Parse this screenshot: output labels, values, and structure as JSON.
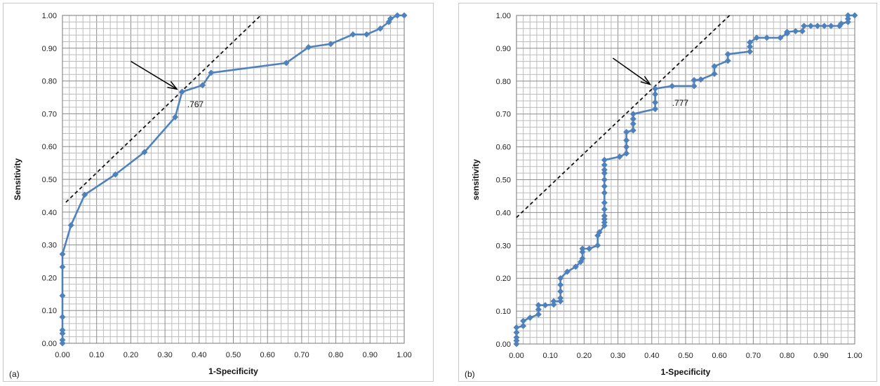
{
  "chart_data": [
    {
      "type": "line",
      "panel_label": "(a)",
      "xlabel": "1-Specificity",
      "ylabel": "Sensitivity",
      "xlim": [
        0,
        1
      ],
      "ylim": [
        0,
        1
      ],
      "grid": true,
      "x_ticks": [
        "0.00",
        "0.10",
        "0.20",
        "0.30",
        "0.40",
        "0.50",
        "0.60",
        "0.70",
        "0.80",
        "0.90",
        "1.00"
      ],
      "y_ticks": [
        "0.00",
        "0.10",
        "0.20",
        "0.30",
        "0.40",
        "0.50",
        "0.60",
        "0.70",
        "0.80",
        "0.90",
        "1.00"
      ],
      "series_color": "#4f81bd",
      "series": [
        {
          "points": [
            [
              0,
              0
            ],
            [
              0,
              0.01
            ],
            [
              0,
              0.03
            ],
            [
              0,
              0.04
            ],
            [
              0,
              0.08
            ],
            [
              0,
              0.145
            ],
            [
              0,
              0.233
            ],
            [
              0,
              0.272
            ],
            [
              0.025,
              0.36
            ],
            [
              0.065,
              0.453
            ],
            [
              0.155,
              0.515
            ],
            [
              0.24,
              0.583
            ],
            [
              0.33,
              0.69
            ],
            [
              0.35,
              0.767
            ],
            [
              0.41,
              0.787
            ],
            [
              0.435,
              0.825
            ],
            [
              0.655,
              0.855
            ],
            [
              0.72,
              0.903
            ],
            [
              0.785,
              0.913
            ],
            [
              0.85,
              0.942
            ],
            [
              0.89,
              0.942
            ],
            [
              0.93,
              0.96
            ],
            [
              0.955,
              0.98
            ],
            [
              0.96,
              0.99
            ],
            [
              0.98,
              1.0
            ],
            [
              1.0,
              1.0
            ]
          ]
        }
      ],
      "tangent_line": [
        [
          0.01,
          0.43
        ],
        [
          0.58,
          1.0
        ]
      ],
      "annotation": {
        "text": ".767",
        "x": 0.365,
        "y": 0.72
      },
      "arrow": {
        "from": [
          0.2,
          0.86
        ],
        "to": [
          0.335,
          0.775
        ]
      }
    },
    {
      "type": "line",
      "panel_label": "(b)",
      "xlabel": "1-Specificity",
      "ylabel": "sensitivity",
      "xlim": [
        0,
        1
      ],
      "ylim": [
        0,
        1
      ],
      "grid": true,
      "x_ticks": [
        "0.00",
        "0.10",
        "0.20",
        "0.30",
        "0.40",
        "0.50",
        "0.60",
        "0.70",
        "0.80",
        "0.90",
        "1.00"
      ],
      "y_ticks": [
        "0.00",
        "0.10",
        "0.20",
        "0.30",
        "0.40",
        "0.50",
        "0.60",
        "0.70",
        "0.80",
        "0.90",
        "1.00"
      ],
      "series_color": "#4f81bd",
      "series": [
        {
          "points": [
            [
              0,
              0
            ],
            [
              0,
              0.01
            ],
            [
              0,
              0.02
            ],
            [
              0,
              0.035
            ],
            [
              0,
              0.05
            ],
            [
              0.02,
              0.055
            ],
            [
              0.02,
              0.07
            ],
            [
              0.04,
              0.08
            ],
            [
              0.065,
              0.09
            ],
            [
              0.065,
              0.105
            ],
            [
              0.065,
              0.118
            ],
            [
              0.085,
              0.118
            ],
            [
              0.11,
              0.12
            ],
            [
              0.11,
              0.13
            ],
            [
              0.13,
              0.13
            ],
            [
              0.13,
              0.14
            ],
            [
              0.13,
              0.16
            ],
            [
              0.13,
              0.18
            ],
            [
              0.13,
              0.2
            ],
            [
              0.15,
              0.22
            ],
            [
              0.175,
              0.235
            ],
            [
              0.19,
              0.25
            ],
            [
              0.195,
              0.26
            ],
            [
              0.195,
              0.28
            ],
            [
              0.195,
              0.29
            ],
            [
              0.215,
              0.29
            ],
            [
              0.24,
              0.3
            ],
            [
              0.24,
              0.33
            ],
            [
              0.245,
              0.34
            ],
            [
              0.26,
              0.36
            ],
            [
              0.26,
              0.37
            ],
            [
              0.26,
              0.38
            ],
            [
              0.26,
              0.39
            ],
            [
              0.26,
              0.41
            ],
            [
              0.26,
              0.43
            ],
            [
              0.26,
              0.46
            ],
            [
              0.26,
              0.48
            ],
            [
              0.26,
              0.5
            ],
            [
              0.26,
              0.52
            ],
            [
              0.26,
              0.53
            ],
            [
              0.26,
              0.545
            ],
            [
              0.26,
              0.56
            ],
            [
              0.305,
              0.57
            ],
            [
              0.325,
              0.58
            ],
            [
              0.325,
              0.6
            ],
            [
              0.325,
              0.62
            ],
            [
              0.325,
              0.645
            ],
            [
              0.345,
              0.65
            ],
            [
              0.345,
              0.67
            ],
            [
              0.345,
              0.685
            ],
            [
              0.345,
              0.7
            ],
            [
              0.41,
              0.715
            ],
            [
              0.41,
              0.735
            ],
            [
              0.41,
              0.76
            ],
            [
              0.41,
              0.777
            ],
            [
              0.46,
              0.785
            ],
            [
              0.525,
              0.785
            ],
            [
              0.525,
              0.803
            ],
            [
              0.545,
              0.805
            ],
            [
              0.585,
              0.822
            ],
            [
              0.585,
              0.845
            ],
            [
              0.625,
              0.862
            ],
            [
              0.625,
              0.882
            ],
            [
              0.69,
              0.89
            ],
            [
              0.69,
              0.905
            ],
            [
              0.69,
              0.918
            ],
            [
              0.71,
              0.932
            ],
            [
              0.74,
              0.932
            ],
            [
              0.78,
              0.932
            ],
            [
              0.8,
              0.945
            ],
            [
              0.8,
              0.95
            ],
            [
              0.825,
              0.952
            ],
            [
              0.845,
              0.952
            ],
            [
              0.85,
              0.968
            ],
            [
              0.87,
              0.968
            ],
            [
              0.89,
              0.968
            ],
            [
              0.91,
              0.968
            ],
            [
              0.93,
              0.968
            ],
            [
              0.955,
              0.968
            ],
            [
              0.96,
              0.975
            ],
            [
              0.98,
              0.98
            ],
            [
              0.98,
              0.99
            ],
            [
              0.98,
              1.0
            ],
            [
              1.0,
              1.0
            ]
          ]
        }
      ],
      "tangent_line": [
        [
          0,
          0.385
        ],
        [
          0.63,
          1.0
        ]
      ],
      "annotation": {
        "text": ".777",
        "x": 0.46,
        "y": 0.725
      },
      "arrow": {
        "from": [
          0.285,
          0.87
        ],
        "to": [
          0.395,
          0.79
        ]
      }
    }
  ]
}
